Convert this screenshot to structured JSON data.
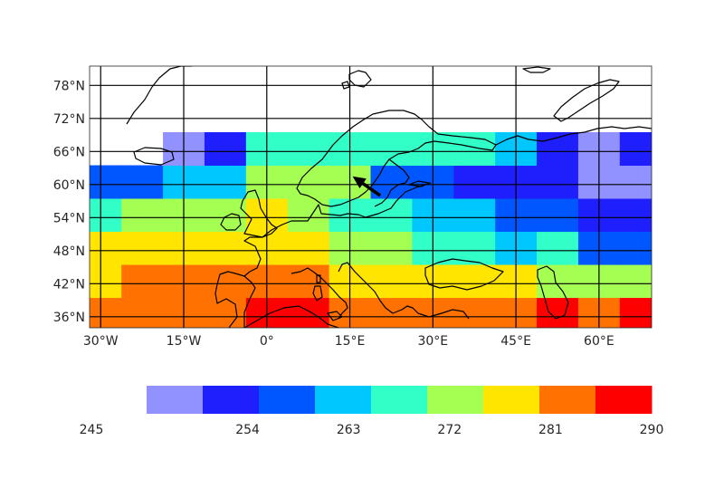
{
  "chart_data": {
    "type": "heatmap",
    "title": "",
    "projection": "PlateCarree",
    "x_range": [
      -32,
      69.5
    ],
    "y_range": [
      34,
      81.5
    ],
    "lon_ticks": [
      -30,
      -15,
      0,
      15,
      30,
      45,
      60
    ],
    "lon_tick_labels": [
      "30°W",
      "15°W",
      "0°",
      "15°E",
      "30°E",
      "45°E",
      "60°E"
    ],
    "lat_ticks": [
      36,
      42,
      48,
      54,
      60,
      66,
      72,
      78
    ],
    "lat_tick_labels": [
      "36°N",
      "42°N",
      "48°N",
      "54°N",
      "60°N",
      "66°N",
      "72°N",
      "78°N"
    ],
    "grid": true,
    "cell_lon_edges": [
      -32,
      -26.25,
      -18.75,
      -11.25,
      -3.75,
      3.75,
      11.25,
      18.75,
      26.25,
      33.75,
      41.25,
      48.75,
      56.25,
      63.75,
      69.5
    ],
    "cell_lat_edges": [
      34,
      39.5,
      45.5,
      51.5,
      57.5,
      63.5,
      69.5,
      75.5,
      81.5
    ],
    "cell_class_note": "rows ordered south to north; values are colorbar class indices 0-8 (class k spans 245+5k to 250+5k); null = no data",
    "cells": [
      [
        7,
        7,
        7,
        7,
        8,
        8,
        7,
        7,
        7,
        7,
        7,
        8,
        7,
        8
      ],
      [
        6,
        7,
        7,
        7,
        7,
        7,
        6,
        6,
        6,
        6,
        6,
        5,
        5,
        5
      ],
      [
        6,
        6,
        6,
        6,
        6,
        6,
        5,
        5,
        4,
        4,
        3,
        4,
        2,
        2
      ],
      [
        4,
        5,
        5,
        5,
        6,
        5,
        4,
        4,
        3,
        3,
        2,
        2,
        1,
        1
      ],
      [
        2,
        2,
        3,
        3,
        5,
        5,
        5,
        2,
        2,
        1,
        1,
        1,
        0,
        0
      ],
      [
        null,
        null,
        0,
        1,
        4,
        4,
        4,
        4,
        4,
        4,
        3,
        1,
        0,
        1
      ],
      [
        null,
        null,
        null,
        null,
        null,
        null,
        null,
        null,
        null,
        null,
        null,
        null,
        null,
        null
      ],
      [
        null,
        null,
        null,
        null,
        null,
        null,
        null,
        null,
        null,
        null,
        null,
        null,
        null,
        null
      ]
    ],
    "quiver": [
      {
        "lon": 20.5,
        "lat": 58.0,
        "dlon": -5.0,
        "dlat": 3.5
      }
    ],
    "colorbar": {
      "min": 245,
      "max": 290,
      "step": 5,
      "colors": [
        "#9191ff",
        "#1f1ffe",
        "#0057ff",
        "#00c8ff",
        "#32ffc8",
        "#a5ff52",
        "#ffe500",
        "#ff7100",
        "#ff0000"
      ],
      "tick_values": [
        245,
        254,
        263,
        272,
        281,
        290
      ],
      "tick_labels": [
        "245",
        "254",
        "263",
        "272",
        "281",
        "290"
      ]
    },
    "coastline_color": "#000000",
    "grid_color": "#000000"
  }
}
